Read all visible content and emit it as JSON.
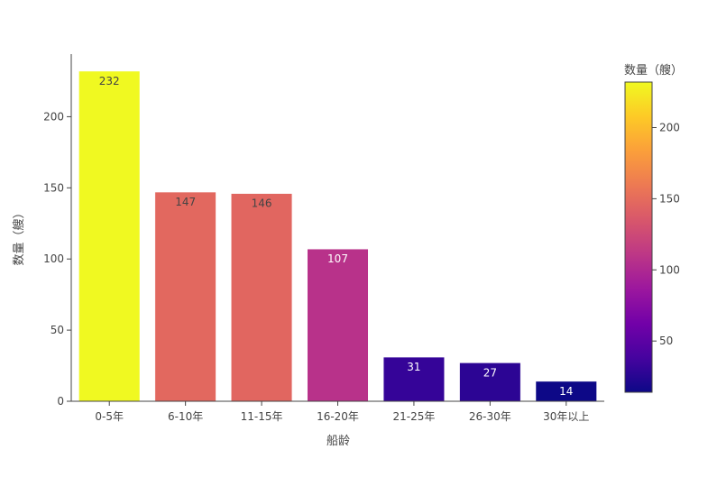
{
  "chart_data": {
    "type": "bar",
    "title": "",
    "xlabel": "船龄",
    "ylabel": "数量（艘）",
    "categories": [
      "0-5年",
      "6-10年",
      "11-15年",
      "16-20年",
      "21-25年",
      "26-30年",
      "30年以上"
    ],
    "values": [
      232,
      147,
      146,
      107,
      31,
      27,
      14
    ],
    "ylim": [
      0,
      244
    ],
    "yticks": [
      0,
      50,
      100,
      150,
      200
    ],
    "grid": false,
    "colorscale": "plasma",
    "colorbar": {
      "title": "数量（艘）",
      "range": [
        14,
        232
      ],
      "ticks": [
        50,
        100,
        150,
        200
      ]
    }
  }
}
